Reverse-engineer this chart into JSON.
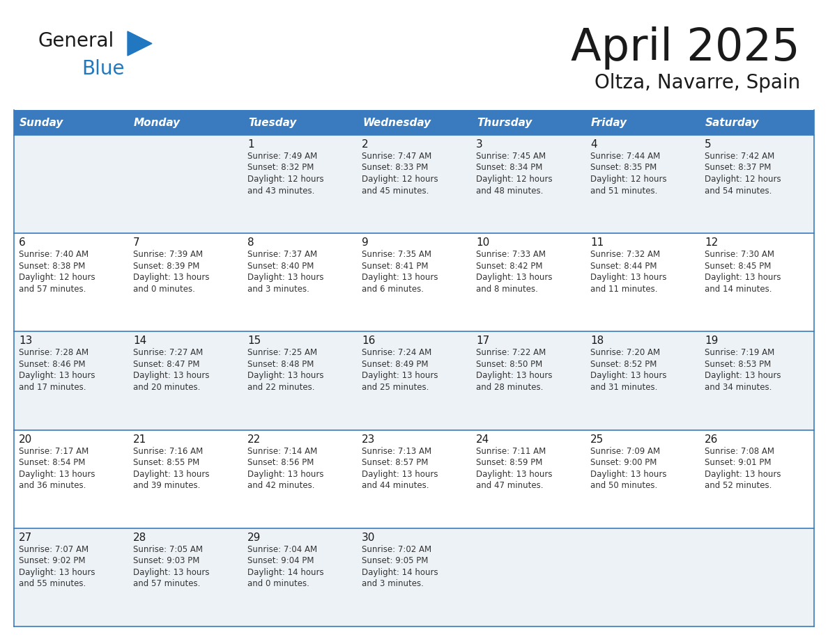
{
  "title": "April 2025",
  "subtitle": "Oltza, Navarre, Spain",
  "header_bg_color": "#3a7bbf",
  "header_text_color": "#ffffff",
  "days_of_week": [
    "Sunday",
    "Monday",
    "Tuesday",
    "Wednesday",
    "Thursday",
    "Friday",
    "Saturday"
  ],
  "row_bg_colors": [
    "#edf2f7",
    "#ffffff"
  ],
  "cell_border_color": "#3a7bbf",
  "title_color": "#1a1a1a",
  "subtitle_color": "#1a1a1a",
  "day_number_color": "#1a1a1a",
  "cell_text_color": "#333333",
  "logo_general_color": "#1a1a1a",
  "logo_blue_color": "#2177c0",
  "logo_triangle_color": "#2177c0",
  "calendar_data": [
    [
      {
        "day": "",
        "lines": []
      },
      {
        "day": "",
        "lines": []
      },
      {
        "day": "1",
        "lines": [
          "Sunrise: 7:49 AM",
          "Sunset: 8:32 PM",
          "Daylight: 12 hours",
          "and 43 minutes."
        ]
      },
      {
        "day": "2",
        "lines": [
          "Sunrise: 7:47 AM",
          "Sunset: 8:33 PM",
          "Daylight: 12 hours",
          "and 45 minutes."
        ]
      },
      {
        "day": "3",
        "lines": [
          "Sunrise: 7:45 AM",
          "Sunset: 8:34 PM",
          "Daylight: 12 hours",
          "and 48 minutes."
        ]
      },
      {
        "day": "4",
        "lines": [
          "Sunrise: 7:44 AM",
          "Sunset: 8:35 PM",
          "Daylight: 12 hours",
          "and 51 minutes."
        ]
      },
      {
        "day": "5",
        "lines": [
          "Sunrise: 7:42 AM",
          "Sunset: 8:37 PM",
          "Daylight: 12 hours",
          "and 54 minutes."
        ]
      }
    ],
    [
      {
        "day": "6",
        "lines": [
          "Sunrise: 7:40 AM",
          "Sunset: 8:38 PM",
          "Daylight: 12 hours",
          "and 57 minutes."
        ]
      },
      {
        "day": "7",
        "lines": [
          "Sunrise: 7:39 AM",
          "Sunset: 8:39 PM",
          "Daylight: 13 hours",
          "and 0 minutes."
        ]
      },
      {
        "day": "8",
        "lines": [
          "Sunrise: 7:37 AM",
          "Sunset: 8:40 PM",
          "Daylight: 13 hours",
          "and 3 minutes."
        ]
      },
      {
        "day": "9",
        "lines": [
          "Sunrise: 7:35 AM",
          "Sunset: 8:41 PM",
          "Daylight: 13 hours",
          "and 6 minutes."
        ]
      },
      {
        "day": "10",
        "lines": [
          "Sunrise: 7:33 AM",
          "Sunset: 8:42 PM",
          "Daylight: 13 hours",
          "and 8 minutes."
        ]
      },
      {
        "day": "11",
        "lines": [
          "Sunrise: 7:32 AM",
          "Sunset: 8:44 PM",
          "Daylight: 13 hours",
          "and 11 minutes."
        ]
      },
      {
        "day": "12",
        "lines": [
          "Sunrise: 7:30 AM",
          "Sunset: 8:45 PM",
          "Daylight: 13 hours",
          "and 14 minutes."
        ]
      }
    ],
    [
      {
        "day": "13",
        "lines": [
          "Sunrise: 7:28 AM",
          "Sunset: 8:46 PM",
          "Daylight: 13 hours",
          "and 17 minutes."
        ]
      },
      {
        "day": "14",
        "lines": [
          "Sunrise: 7:27 AM",
          "Sunset: 8:47 PM",
          "Daylight: 13 hours",
          "and 20 minutes."
        ]
      },
      {
        "day": "15",
        "lines": [
          "Sunrise: 7:25 AM",
          "Sunset: 8:48 PM",
          "Daylight: 13 hours",
          "and 22 minutes."
        ]
      },
      {
        "day": "16",
        "lines": [
          "Sunrise: 7:24 AM",
          "Sunset: 8:49 PM",
          "Daylight: 13 hours",
          "and 25 minutes."
        ]
      },
      {
        "day": "17",
        "lines": [
          "Sunrise: 7:22 AM",
          "Sunset: 8:50 PM",
          "Daylight: 13 hours",
          "and 28 minutes."
        ]
      },
      {
        "day": "18",
        "lines": [
          "Sunrise: 7:20 AM",
          "Sunset: 8:52 PM",
          "Daylight: 13 hours",
          "and 31 minutes."
        ]
      },
      {
        "day": "19",
        "lines": [
          "Sunrise: 7:19 AM",
          "Sunset: 8:53 PM",
          "Daylight: 13 hours",
          "and 34 minutes."
        ]
      }
    ],
    [
      {
        "day": "20",
        "lines": [
          "Sunrise: 7:17 AM",
          "Sunset: 8:54 PM",
          "Daylight: 13 hours",
          "and 36 minutes."
        ]
      },
      {
        "day": "21",
        "lines": [
          "Sunrise: 7:16 AM",
          "Sunset: 8:55 PM",
          "Daylight: 13 hours",
          "and 39 minutes."
        ]
      },
      {
        "day": "22",
        "lines": [
          "Sunrise: 7:14 AM",
          "Sunset: 8:56 PM",
          "Daylight: 13 hours",
          "and 42 minutes."
        ]
      },
      {
        "day": "23",
        "lines": [
          "Sunrise: 7:13 AM",
          "Sunset: 8:57 PM",
          "Daylight: 13 hours",
          "and 44 minutes."
        ]
      },
      {
        "day": "24",
        "lines": [
          "Sunrise: 7:11 AM",
          "Sunset: 8:59 PM",
          "Daylight: 13 hours",
          "and 47 minutes."
        ]
      },
      {
        "day": "25",
        "lines": [
          "Sunrise: 7:09 AM",
          "Sunset: 9:00 PM",
          "Daylight: 13 hours",
          "and 50 minutes."
        ]
      },
      {
        "day": "26",
        "lines": [
          "Sunrise: 7:08 AM",
          "Sunset: 9:01 PM",
          "Daylight: 13 hours",
          "and 52 minutes."
        ]
      }
    ],
    [
      {
        "day": "27",
        "lines": [
          "Sunrise: 7:07 AM",
          "Sunset: 9:02 PM",
          "Daylight: 13 hours",
          "and 55 minutes."
        ]
      },
      {
        "day": "28",
        "lines": [
          "Sunrise: 7:05 AM",
          "Sunset: 9:03 PM",
          "Daylight: 13 hours",
          "and 57 minutes."
        ]
      },
      {
        "day": "29",
        "lines": [
          "Sunrise: 7:04 AM",
          "Sunset: 9:04 PM",
          "Daylight: 14 hours",
          "and 0 minutes."
        ]
      },
      {
        "day": "30",
        "lines": [
          "Sunrise: 7:02 AM",
          "Sunset: 9:05 PM",
          "Daylight: 14 hours",
          "and 3 minutes."
        ]
      },
      {
        "day": "",
        "lines": []
      },
      {
        "day": "",
        "lines": []
      },
      {
        "day": "",
        "lines": []
      }
    ]
  ]
}
